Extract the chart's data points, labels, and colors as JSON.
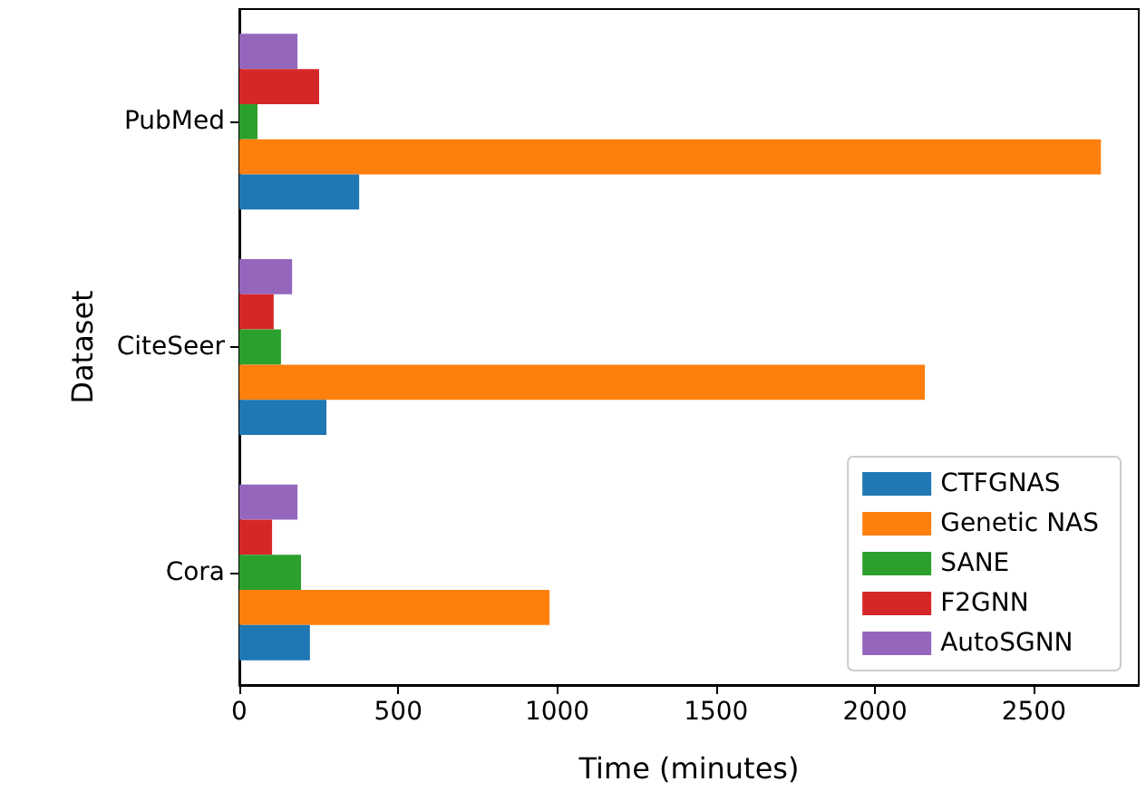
{
  "chart_data": {
    "type": "bar",
    "orientation": "horizontal",
    "xlabel": "Time (minutes)",
    "ylabel": "Dataset",
    "categories": [
      "PubMed",
      "CiteSeer",
      "Cora"
    ],
    "series": [
      {
        "name": "CTFGNAS",
        "color": "#1f77b4",
        "values": [
          377,
          274,
          222
        ]
      },
      {
        "name": "Genetic NAS",
        "color": "#ff7f0e",
        "values": [
          2711,
          2157,
          976
        ]
      },
      {
        "name": "SANE",
        "color": "#2ca02c",
        "values": [
          57,
          131,
          194
        ]
      },
      {
        "name": "F2GNN",
        "color": "#d62728",
        "values": [
          251,
          108,
          103
        ]
      },
      {
        "name": "AutoSGNN",
        "color": "#9467bd",
        "values": [
          183,
          166,
          183
        ]
      }
    ],
    "xlim": [
      0,
      2830
    ],
    "xticks": [
      0,
      500,
      1000,
      1500,
      2000,
      2500
    ],
    "grid": false,
    "legend": "bottom right"
  }
}
